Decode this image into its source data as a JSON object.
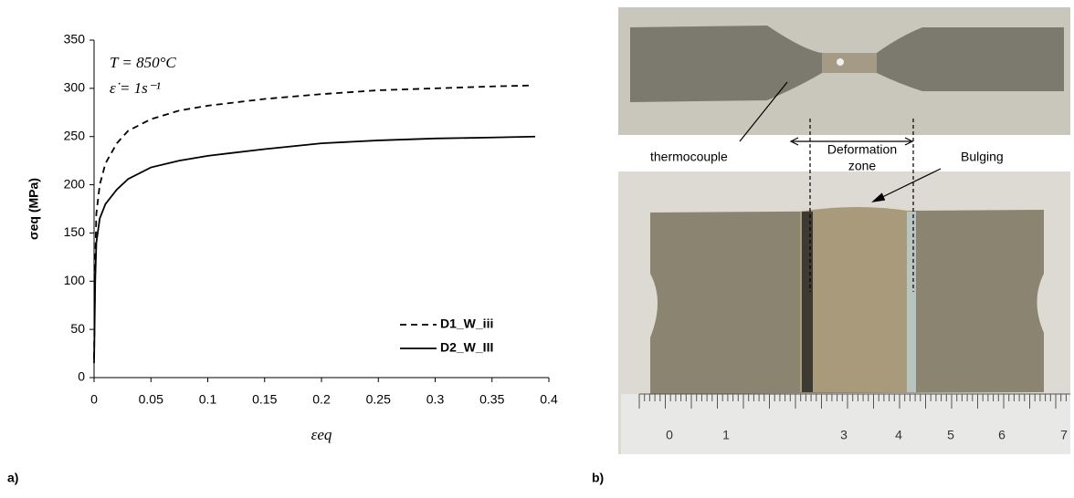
{
  "chart_data": {
    "type": "line",
    "y_label": "σeq (MPa)",
    "x_label": "εeq",
    "annotations": [
      "T = 850°C",
      "ε̇ = 1s⁻¹"
    ],
    "xlim": [
      0,
      0.4
    ],
    "xticks": [
      0,
      0.05,
      0.1,
      0.15,
      0.2,
      0.25,
      0.3,
      0.35,
      0.4
    ],
    "ylim": [
      0,
      350
    ],
    "yticks": [
      0,
      50,
      100,
      150,
      200,
      250,
      300,
      350
    ],
    "legend": "lower right",
    "series": [
      {
        "name": "D1_W_iii",
        "color": "#000000",
        "dash": true,
        "x": [
          0,
          0.001,
          0.002,
          0.005,
          0.01,
          0.02,
          0.03,
          0.05,
          0.075,
          0.1,
          0.15,
          0.2,
          0.25,
          0.3,
          0.35,
          0.385
        ],
        "values": [
          20,
          120,
          170,
          200,
          222,
          243,
          256,
          268,
          277,
          282,
          289,
          294,
          298,
          300,
          302,
          303
        ]
      },
      {
        "name": "D2_W_III",
        "color": "#000000",
        "dash": false,
        "x": [
          0,
          0.001,
          0.002,
          0.005,
          0.01,
          0.02,
          0.03,
          0.05,
          0.075,
          0.1,
          0.15,
          0.2,
          0.25,
          0.3,
          0.35,
          0.388
        ],
        "values": [
          15,
          100,
          140,
          165,
          180,
          195,
          206,
          218,
          225,
          230,
          237,
          243,
          246,
          248,
          249,
          250
        ]
      }
    ]
  },
  "panel_labels": [
    "a)",
    "b)"
  ],
  "photo_labels": {
    "thermocouple": "thermocouple",
    "deformation_zone": [
      "Deformation",
      "zone"
    ],
    "bulging": "Bulging"
  },
  "ruler_labels": [
    "0",
    "1",
    "3",
    "4",
    "5",
    "6",
    "7"
  ]
}
